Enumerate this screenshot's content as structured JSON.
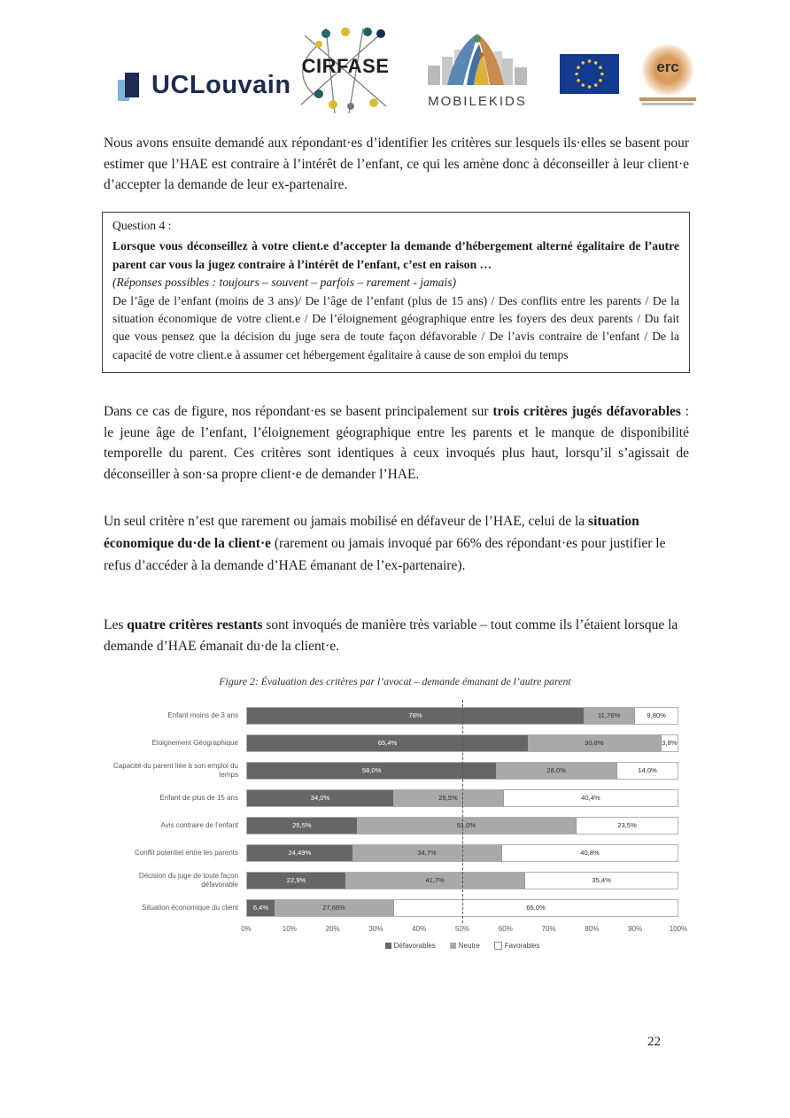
{
  "header": {
    "logos": {
      "uclouvain": "UCLouvain",
      "cirfase": "CIRFASE",
      "mobilekids": "MOBILEKIDS",
      "erc": "erc"
    }
  },
  "paragraphs": {
    "p1": "Nous avons ensuite demandé aux répondant·es d’identifier les critères sur lesquels ils·elles se basent pour estimer que l’HAE est contraire à l’intérêt de l’enfant, ce qui les amène donc à déconseiller à leur client·e d’accepter la demande de leur ex-partenaire.",
    "p2_pre": "Dans ce cas de figure, nos répondant·es se basent principalement sur ",
    "p2_bold": "trois critères jugés défavorables",
    "p2_post": " : le jeune âge de l’enfant, l’éloignement géographique entre les parents et le manque de disponibilité temporelle du parent. Ces critères sont identiques à ceux invoqués plus haut, lorsqu’il s’agissait de déconseiller à son·sa propre client·e de demander l’HAE.",
    "p3_pre": "Un seul critère n’est que rarement ou jamais mobilisé en défaveur de l’HAE, celui de la ",
    "p3_bold": "situation économique du·de la client·e",
    "p3_post": " (rarement ou jamais invoqué par 66% des répondant·es pour justifier le refus d’accéder à la demande d’HAE émanant de l’ex-partenaire).",
    "p4_pre": "Les ",
    "p4_bold": "quatre critères restants",
    "p4_post": " sont invoqués de manière très variable – tout comme ils l’étaient lorsque la demande d’HAE émanait du·de la client·e."
  },
  "question_box": {
    "title": "Question 4 :",
    "bold_text": "Lorsque vous déconseillez à votre client.e d’accepter la demande d’hébergement alterné égalitaire de l’autre parent car vous la jugez contraire à l’intérêt de l’enfant, c’est en raison …",
    "italic_text": "(Réponses possibles : toujours – souvent – parfois – rarement - jamais)",
    "body_text": "De l’âge de l’enfant (moins de 3 ans)/ De l’âge de l’enfant (plus de 15 ans) / Des conflits entre les parents / De la situation économique de votre client.e / De l’éloignement géographique entre les foyers des deux parents / Du fait que vous pensez que la décision du juge sera de toute façon défavorable / De l’avis contraire de l’enfant / De la capacité de votre client.e à assumer cet hébergement égalitaire à cause de son emploi du temps"
  },
  "figure": {
    "caption": "Figure 2: Évaluation des critères par l’avocat – demande émanant de l’autre parent"
  },
  "chart_data": {
    "type": "bar",
    "orientation": "horizontal",
    "stacked": true,
    "title": "Figure 2: Évaluation des critères par l’avocat – demande émanant de l’autre parent",
    "categories": [
      "Enfant moins de 3 ans",
      "Eloignement Géographique",
      "Capacité du parent liée à son emploi du temps",
      "Enfant de plus de 15 ans",
      "Avis contraire de l’enfant",
      "Conflit potentiel entre les parents",
      "Décision du juge de toute façon défavorable",
      "Situation économique du client"
    ],
    "series": [
      {
        "name": "Défavorables",
        "color": "#666666",
        "values": [
          78,
          65.4,
          58.0,
          34.0,
          25.5,
          24.49,
          22.9,
          6.4
        ],
        "labels": [
          "78%",
          "65,4%",
          "58,0%",
          "34,0%",
          "25,5%",
          "24,49%",
          "22,9%",
          "6,4%"
        ]
      },
      {
        "name": "Neutre",
        "color": "#a9a9a9",
        "values": [
          11.76,
          30.8,
          28.0,
          25.5,
          51.0,
          34.7,
          41.7,
          27.66
        ],
        "labels": [
          "11,76%",
          "30,8%",
          "28,0%",
          "25,5%",
          "51,0%",
          "34,7%",
          "41,7%",
          "27,66%"
        ]
      },
      {
        "name": "Favorables",
        "color": "#ffffff",
        "values": [
          9.8,
          3.8,
          14.0,
          40.4,
          23.5,
          40.8,
          35.4,
          66.0
        ],
        "labels": [
          "9,80%",
          "3,8%",
          "14,0%",
          "40,4%",
          "23,5%",
          "40,8%",
          "35,4%",
          "66,0%"
        ]
      }
    ],
    "x_ticks": [
      "0%",
      "10%",
      "20%",
      "30%",
      "40%",
      "50%",
      "60%",
      "70%",
      "80%",
      "90%",
      "100%"
    ],
    "xlim": [
      0,
      100
    ],
    "reference_line_x": 50,
    "legend": [
      "Défavorables",
      "Neutre",
      "Favorables"
    ],
    "legend_position": "bottom",
    "grid": false
  },
  "footer": {
    "page_number": "22"
  }
}
